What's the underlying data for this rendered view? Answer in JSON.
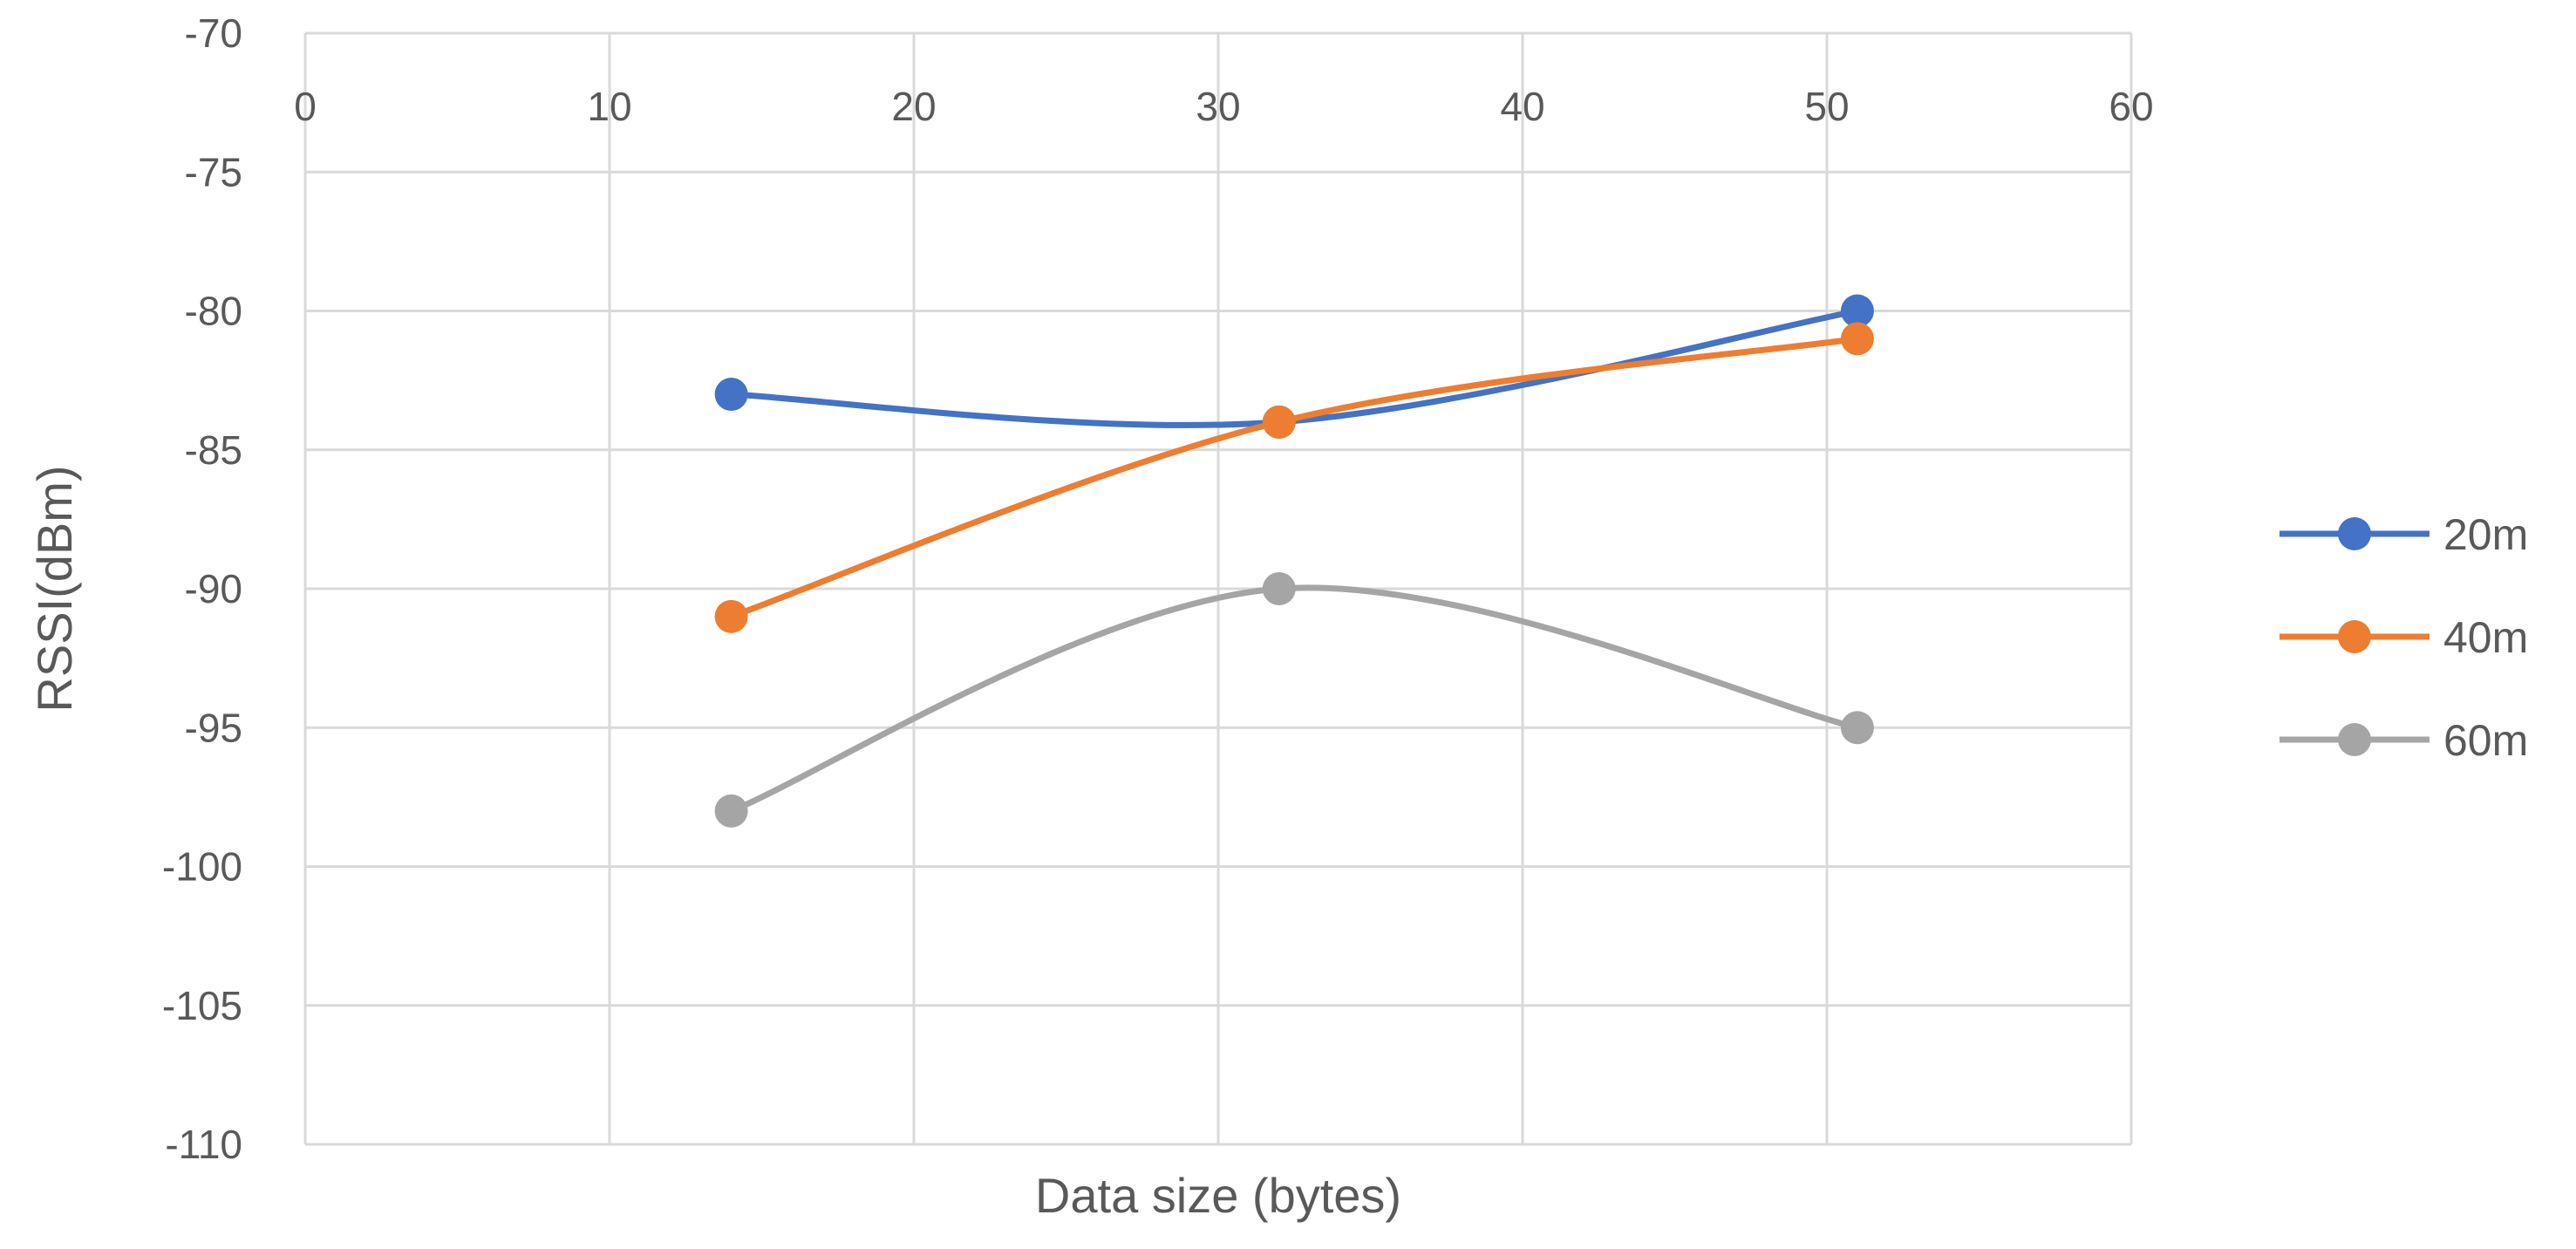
{
  "chart_data": {
    "type": "line",
    "title": "",
    "xlabel": "Data size (bytes)",
    "ylabel": "RSSI(dBm)",
    "xlim": [
      0,
      60
    ],
    "ylim": [
      -110,
      -70
    ],
    "x_ticks": [
      "0",
      "10",
      "20",
      "30",
      "40",
      "50",
      "60"
    ],
    "y_ticks": [
      "-70",
      "-75",
      "-80",
      "-85",
      "-90",
      "-95",
      "-100",
      "-105",
      "-110"
    ],
    "x_axis_position": "top",
    "grid": true,
    "smooth": true,
    "legend_position": "right",
    "series": [
      {
        "name": "20m",
        "color": "#4472C4",
        "x": [
          14,
          32,
          51
        ],
        "y": [
          -83,
          -84,
          -80
        ]
      },
      {
        "name": "40m",
        "color": "#ED7D31",
        "x": [
          14,
          32,
          51
        ],
        "y": [
          -91,
          -84,
          -81
        ]
      },
      {
        "name": "60m",
        "color": "#A5A5A5",
        "x": [
          14,
          32,
          51
        ],
        "y": [
          -98,
          -90,
          -95
        ]
      }
    ]
  }
}
